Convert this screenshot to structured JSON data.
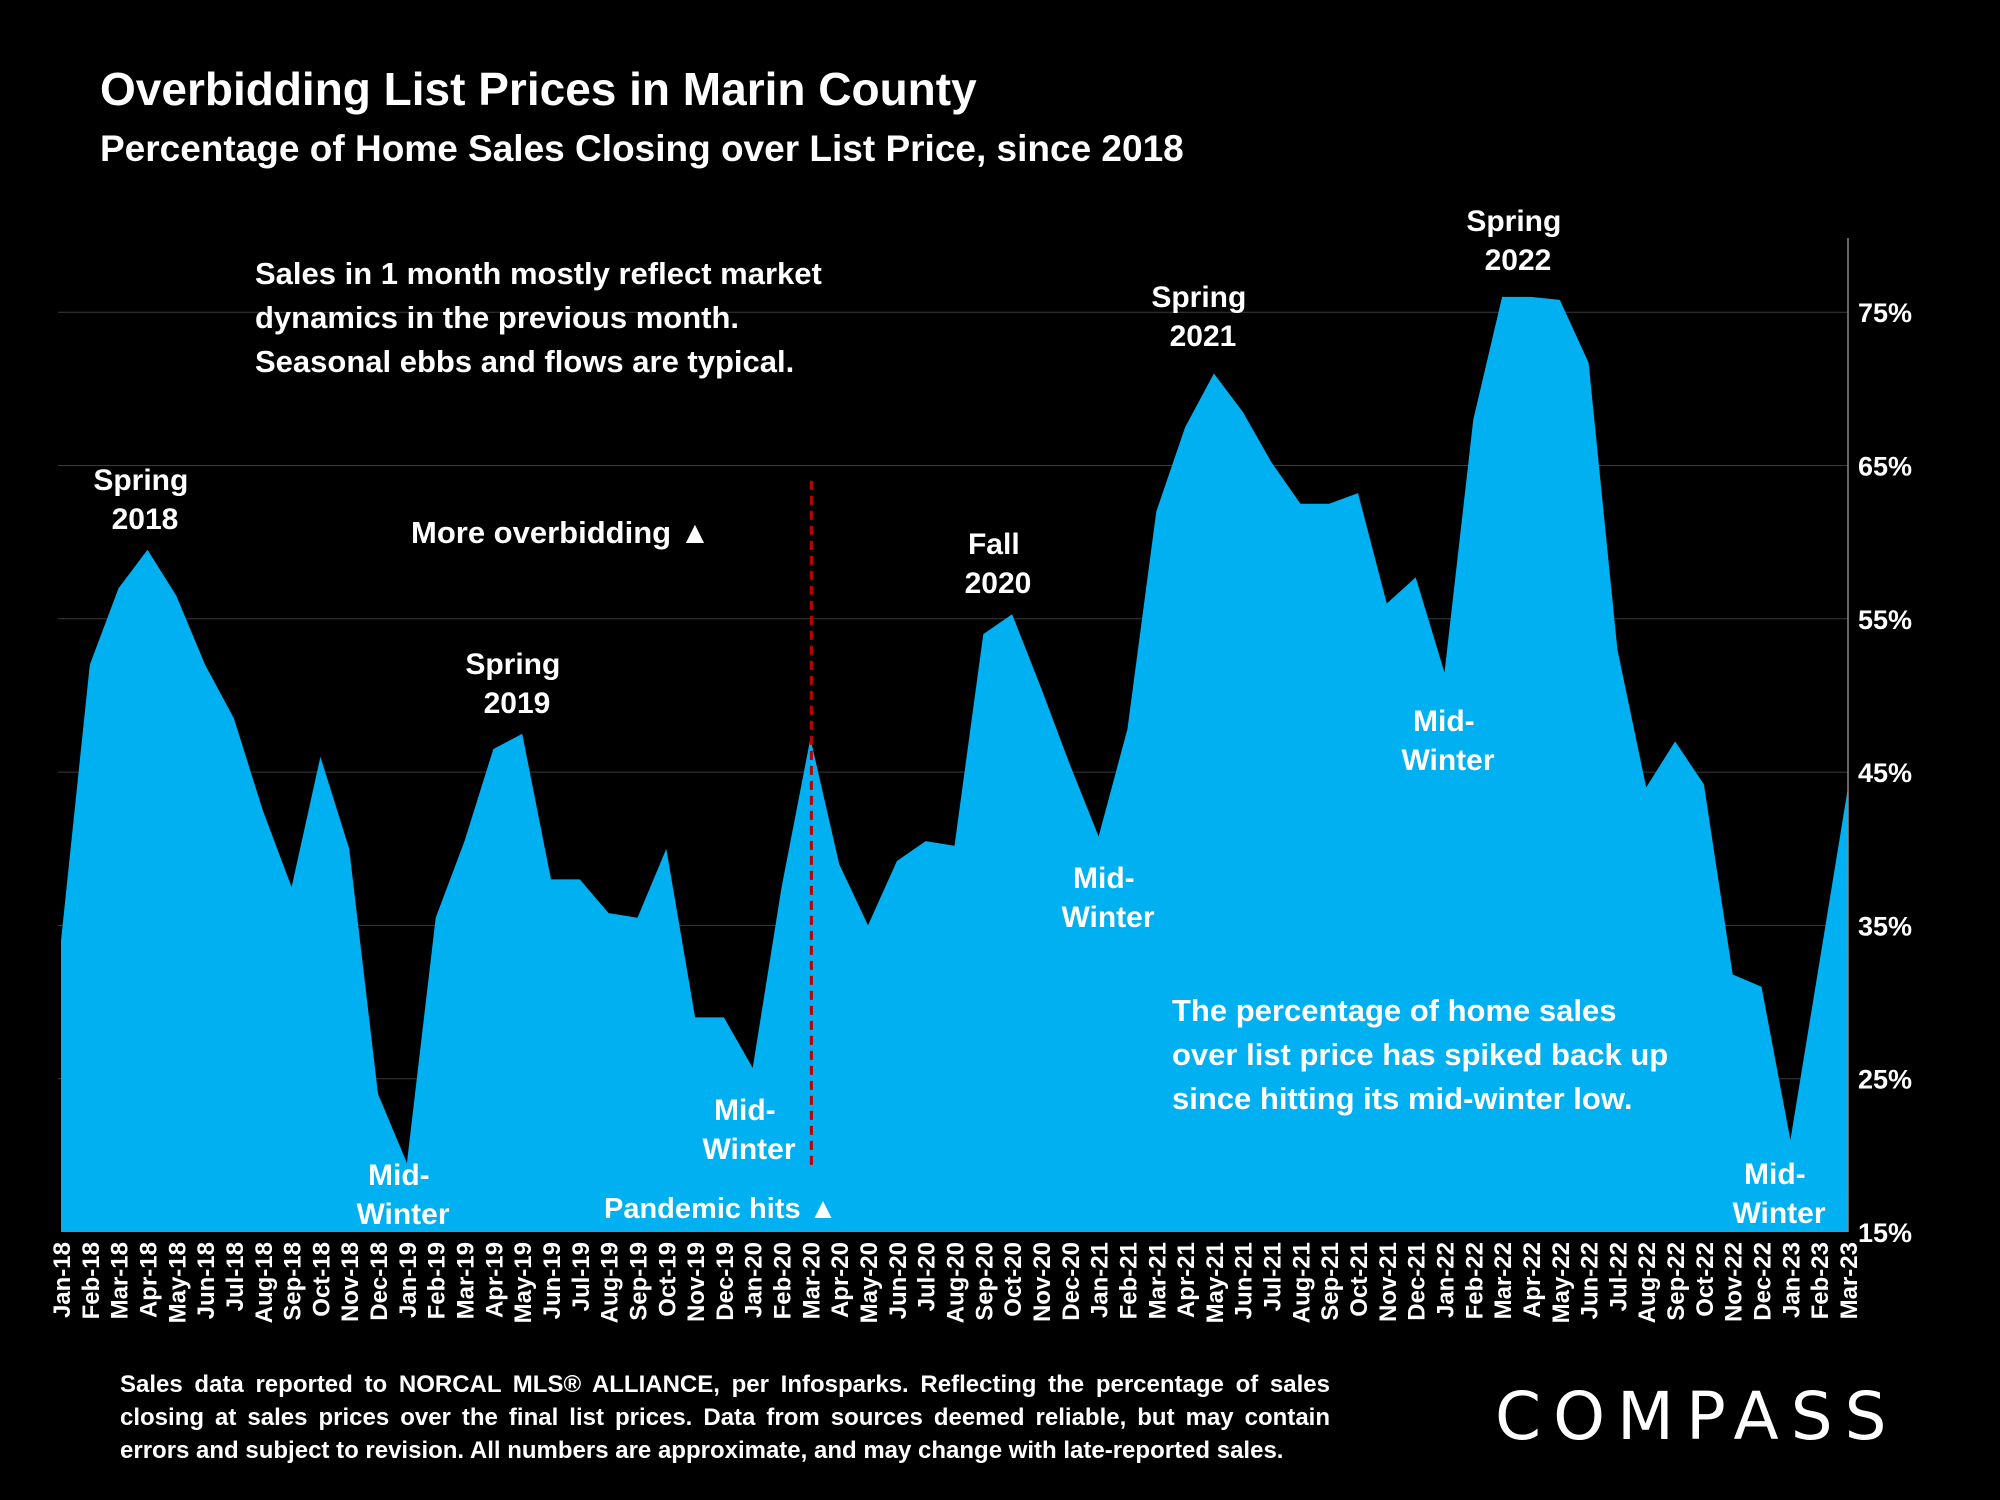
{
  "page": {
    "title": "Overbidding List Prices in Marin County",
    "subtitle": "Percentage of Home Sales Closing over List Price, since 2018",
    "footnote": "Sales data reported to NORCAL MLS® ALLIANCE, per Infosparks. Reflecting the percentage of sales closing at sales prices over the final list prices. Data from sources deemed reliable, but may contain errors and subject to revision. All numbers are approximate, and may change with late-reported sales.",
    "logo": "COMPASS"
  },
  "chart_data": {
    "type": "area",
    "title": "Overbidding List Prices in Marin County",
    "subtitle": "Percentage of Home Sales Closing over List Price, since 2018",
    "categories": [
      "Jan-18",
      "Feb-18",
      "Mar-18",
      "Apr-18",
      "May-18",
      "Jun-18",
      "Jul-18",
      "Aug-18",
      "Sep-18",
      "Oct-18",
      "Nov-18",
      "Dec-18",
      "Jan-19",
      "Feb-19",
      "Mar-19",
      "Apr-19",
      "May-19",
      "Jun-19",
      "Jul-19",
      "Aug-19",
      "Sep-19",
      "Oct-19",
      "Nov-19",
      "Dec-19",
      "Jan-20",
      "Feb-20",
      "Mar-20",
      "Apr-20",
      "May-20",
      "Jun-20",
      "Jul-20",
      "Aug-20",
      "Sep-20",
      "Oct-20",
      "Nov-20",
      "Dec-20",
      "Jan-21",
      "Feb-21",
      "Mar-21",
      "Apr-21",
      "May-21",
      "Jun-21",
      "Jul-21",
      "Aug-21",
      "Sep-21",
      "Oct-21",
      "Nov-21",
      "Dec-21",
      "Jan-22",
      "Feb-22",
      "Mar-22",
      "Apr-22",
      "May-22",
      "Jun-22",
      "Jul-22",
      "Aug-22",
      "Sep-22",
      "Oct-22",
      "Nov-22",
      "Dec-22",
      "Jan-23",
      "Feb-23",
      "Mar-23"
    ],
    "values": [
      34,
      52,
      57,
      59.5,
      56.5,
      52,
      48.5,
      42.5,
      37.5,
      46,
      40,
      24,
      19.5,
      35.5,
      40.5,
      46.5,
      47.5,
      38,
      38,
      35.8,
      35.5,
      40,
      29,
      29,
      25.7,
      37.5,
      47.2,
      39,
      35,
      39.2,
      40.5,
      40.2,
      54,
      55.3,
      50.5,
      45.5,
      40.8,
      47.8,
      62,
      67.5,
      71,
      68.5,
      65.2,
      62.5,
      62.5,
      63.2,
      56,
      57.7,
      51.5,
      68,
      76,
      76,
      75.8,
      71.7,
      53,
      44,
      47,
      44.2,
      31.8,
      31,
      21,
      32.5,
      44
    ],
    "y_unit": "%",
    "ylim": [
      15,
      80
    ],
    "yticks": [
      "15%",
      "25%",
      "35%",
      "45%",
      "55%",
      "65%",
      "75%"
    ],
    "y_axis_side": "right",
    "grid": true,
    "colors": {
      "area": "#00B0F0",
      "background": "#000000",
      "pandemic_line": "#C00000"
    },
    "pandemic_marker": {
      "category": "Mar-20",
      "from": 19,
      "to": 64
    },
    "annotations": {
      "spring2018": [
        "Spring",
        "2018"
      ],
      "spring2019": [
        "Spring",
        "2019"
      ],
      "fall2020": [
        "Fall",
        "2020"
      ],
      "spring2021": [
        "Spring",
        "2021"
      ],
      "spring2022": [
        "Spring",
        "2022"
      ],
      "midwinter": [
        "Mid-",
        "Winter"
      ],
      "more_overbidding": "More overbidding ▲",
      "pandemic_hits": "Pandemic hits ▲",
      "note_top": [
        "Sales in 1 month mostly reflect market",
        "dynamics in the previous month.",
        "Seasonal ebbs and flows are typical."
      ],
      "note_bottom": [
        "The percentage of home sales",
        "over list price has spiked back up",
        "since hitting its mid-winter low."
      ]
    }
  }
}
